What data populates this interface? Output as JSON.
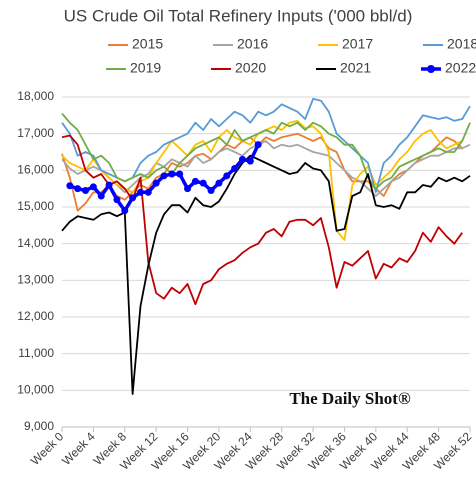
{
  "chart_data": {
    "type": "line",
    "title": "US Crude Oil Total Refinery Inputs ('000 bbl/d)",
    "watermark": "The Daily Shot®",
    "categories": [
      "Week 0",
      null,
      null,
      null,
      "Week 4",
      null,
      null,
      null,
      "Week 8",
      null,
      null,
      null,
      "Week 12",
      null,
      null,
      null,
      "Week 16",
      null,
      null,
      null,
      "Week 20",
      null,
      null,
      null,
      "Week 24",
      null,
      null,
      null,
      "Week 28",
      null,
      null,
      null,
      "Week 32",
      null,
      null,
      null,
      "Week 36",
      null,
      null,
      null,
      "Week 40",
      null,
      null,
      null,
      "Week 44",
      null,
      null,
      null,
      "Week 48",
      null,
      null,
      null,
      "Week 52"
    ],
    "ylim": [
      9000,
      18000
    ],
    "yticks": [
      {
        "value": 9000,
        "label": "9,000"
      },
      {
        "value": 10000,
        "label": "10,000"
      },
      {
        "value": 11000,
        "label": "11,000"
      },
      {
        "value": 12000,
        "label": "12,000"
      },
      {
        "value": 13000,
        "label": "13,000"
      },
      {
        "value": 14000,
        "label": "14,000"
      },
      {
        "value": 15000,
        "label": "15,000"
      },
      {
        "value": 16000,
        "label": "16,000"
      },
      {
        "value": 17000,
        "label": "17,000"
      },
      {
        "value": 18000,
        "label": "18,000"
      }
    ],
    "grid": true,
    "legend": "top",
    "series": [
      {
        "name": "2015",
        "color": "#ed7d31",
        "values": [
          16450,
          15800,
          14900,
          15100,
          15400,
          15400,
          15600,
          15300,
          15200,
          15400,
          15600,
          15500,
          15800,
          15900,
          16200,
          16100,
          16200,
          16400,
          16450,
          16300,
          16500,
          16700,
          16600,
          16800,
          16900,
          16700,
          16900,
          16800,
          16900,
          16950,
          17000,
          16900,
          16800,
          16900,
          16600,
          16500,
          16000,
          15700,
          15700,
          15700,
          15500,
          15300,
          15700,
          15900,
          16000,
          16200,
          16400,
          16500,
          16700,
          16900,
          16800,
          16600,
          null
        ]
      },
      {
        "name": "2016",
        "color": "#a5a5a5",
        "values": [
          16300,
          16050,
          15900,
          16000,
          16100,
          16000,
          15800,
          15600,
          15400,
          15600,
          15800,
          15900,
          16200,
          16100,
          16300,
          16200,
          16100,
          16400,
          16200,
          16300,
          16500,
          16600,
          16500,
          16400,
          16600,
          16700,
          16800,
          16600,
          16700,
          16650,
          16700,
          16600,
          16500,
          16450,
          16400,
          16200,
          16000,
          15800,
          15700,
          15500,
          15300,
          15500,
          15700,
          15800,
          16000,
          16200,
          16300,
          16400,
          16400,
          16500,
          16600,
          16600,
          16700
        ]
      },
      {
        "name": "2017",
        "color": "#ffc000",
        "values": [
          16400,
          16200,
          16100,
          16000,
          16300,
          16000,
          15800,
          15600,
          15500,
          15400,
          15700,
          15800,
          16200,
          16500,
          16800,
          16600,
          16400,
          16700,
          16800,
          16500,
          16900,
          17100,
          16900,
          16800,
          16700,
          17000,
          17100,
          17200,
          17100,
          17300,
          17350,
          17150,
          17200,
          17000,
          16500,
          14350,
          14100,
          15600,
          15900,
          16100,
          15600,
          15800,
          16000,
          16300,
          16500,
          16800,
          17000,
          17100,
          16800,
          16600,
          16700,
          16800,
          null
        ]
      },
      {
        "name": "2018",
        "color": "#5b9bd5",
        "values": [
          17300,
          17000,
          16400,
          16500,
          16400,
          16000,
          15900,
          15800,
          15700,
          15800,
          16200,
          16400,
          16500,
          16700,
          16800,
          16900,
          17000,
          17300,
          17100,
          17400,
          17200,
          17400,
          17600,
          17500,
          17300,
          17600,
          17500,
          17600,
          17800,
          17700,
          17600,
          17400,
          17950,
          17900,
          17600,
          17000,
          16800,
          16600,
          16400,
          16200,
          15400,
          16200,
          16400,
          16700,
          16900,
          17200,
          17500,
          17450,
          17400,
          17450,
          17350,
          17400,
          17750
        ]
      },
      {
        "name": "2019",
        "color": "#70ad47",
        "values": [
          17550,
          17300,
          17100,
          16700,
          16300,
          16400,
          16200,
          15800,
          15700,
          15800,
          15900,
          15800,
          16000,
          16100,
          15900,
          16200,
          16400,
          16600,
          16700,
          16800,
          16900,
          16700,
          17100,
          16800,
          16900,
          17000,
          17100,
          17000,
          17300,
          17200,
          17300,
          17100,
          17300,
          17200,
          17000,
          16900,
          16700,
          16700,
          16400,
          15800,
          15500,
          15700,
          15800,
          16100,
          16200,
          16300,
          16400,
          16500,
          16600,
          16500,
          16500,
          16800,
          17300
        ]
      },
      {
        "name": "2020",
        "color": "#c00000",
        "values": [
          16900,
          16950,
          16700,
          16000,
          15800,
          15900,
          15600,
          15700,
          15500,
          15200,
          15800,
          13500,
          12650,
          12500,
          12800,
          12650,
          12900,
          12350,
          12900,
          13000,
          13300,
          13450,
          13550,
          13750,
          13900,
          14000,
          14300,
          14400,
          14200,
          14600,
          14650,
          14650,
          14500,
          14700,
          13900,
          12800,
          13500,
          13400,
          13600,
          13800,
          13050,
          13450,
          13350,
          13600,
          13500,
          13800,
          14300,
          14050,
          14450,
          14200,
          14000,
          14300,
          null
        ]
      },
      {
        "name": "2021",
        "color": "#000000",
        "values": [
          14350,
          14600,
          14750,
          14700,
          14650,
          14800,
          14850,
          14750,
          14850,
          9900,
          12300,
          13400,
          14300,
          14800,
          15050,
          15050,
          14850,
          15250,
          15050,
          15000,
          15150,
          15500,
          15900,
          16200,
          16400,
          16300,
          16200,
          16100,
          16000,
          15900,
          15950,
          16200,
          16050,
          16000,
          15700,
          14350,
          14400,
          15300,
          15400,
          15900,
          15050,
          15000,
          15050,
          14950,
          15400,
          15400,
          15600,
          15550,
          15800,
          15700,
          15800,
          15700,
          15850
        ]
      },
      {
        "name": "2022",
        "color": "#0000ff",
        "marker": "circle",
        "values": [
          null,
          15580,
          15500,
          15450,
          15550,
          15300,
          15600,
          15200,
          14900,
          15250,
          15400,
          15400,
          15650,
          15850,
          15900,
          15900,
          15500,
          15700,
          15650,
          15450,
          15650,
          15850,
          16050,
          16300,
          16250,
          16700,
          null,
          null,
          null,
          null,
          null,
          null,
          null,
          null,
          null,
          null,
          null,
          null,
          null,
          null,
          null,
          null,
          null,
          null,
          null,
          null,
          null,
          null,
          null,
          null,
          null,
          null,
          null
        ]
      }
    ]
  }
}
